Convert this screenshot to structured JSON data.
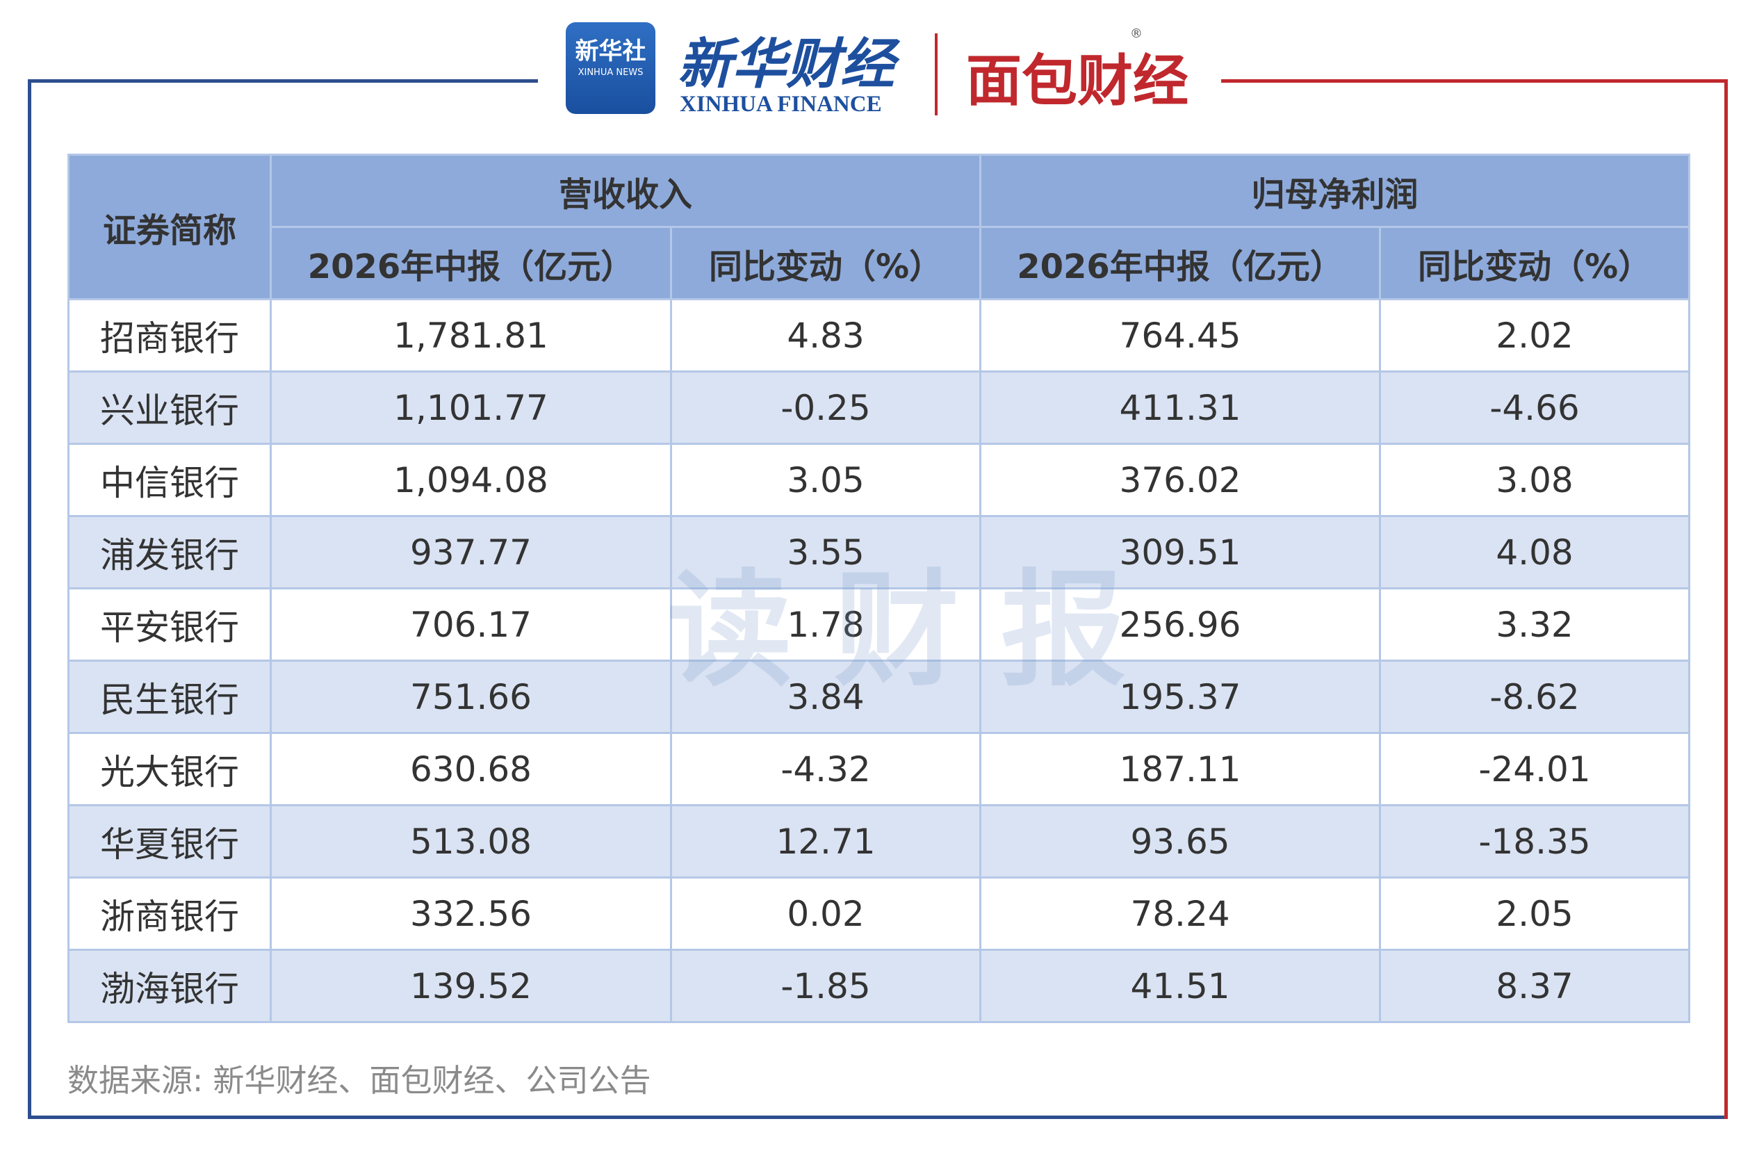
{
  "header": {
    "xinhua_news_cn": "新华社",
    "xinhua_news_en": "XINHUA NEWS",
    "xinhua_finance_cn": "新华财经",
    "xinhua_finance_en": "XINHUA FINANCE",
    "mianbao": "面包财经",
    "registered": "®"
  },
  "watermark": "读财报",
  "table": {
    "corner": "证券简称",
    "groups": [
      "营收收入",
      "归母净利润"
    ],
    "columns": [
      "2026年中报（亿元）",
      "同比变动（%）",
      "2026年中报（亿元）",
      "同比变动（%）"
    ],
    "rows": [
      [
        "招商银行",
        "1,781.81",
        "4.83",
        "764.45",
        "2.02"
      ],
      [
        "兴业银行",
        "1,101.77",
        "-0.25",
        "411.31",
        "-4.66"
      ],
      [
        "中信银行",
        "1,094.08",
        "3.05",
        "376.02",
        "3.08"
      ],
      [
        "浦发银行",
        "937.77",
        "3.55",
        "309.51",
        "4.08"
      ],
      [
        "平安银行",
        "706.17",
        "1.78",
        "256.96",
        "3.32"
      ],
      [
        "民生银行",
        "751.66",
        "3.84",
        "195.37",
        "-8.62"
      ],
      [
        "光大银行",
        "630.68",
        "-4.32",
        "187.11",
        "-24.01"
      ],
      [
        "华夏银行",
        "513.08",
        "12.71",
        "93.65",
        "-18.35"
      ],
      [
        "浙商银行",
        "332.56",
        "0.02",
        "78.24",
        "2.05"
      ],
      [
        "渤海银行",
        "139.52",
        "-1.85",
        "41.51",
        "8.37"
      ]
    ]
  },
  "source": "数据来源: 新华财经、面包财经、公司公告"
}
